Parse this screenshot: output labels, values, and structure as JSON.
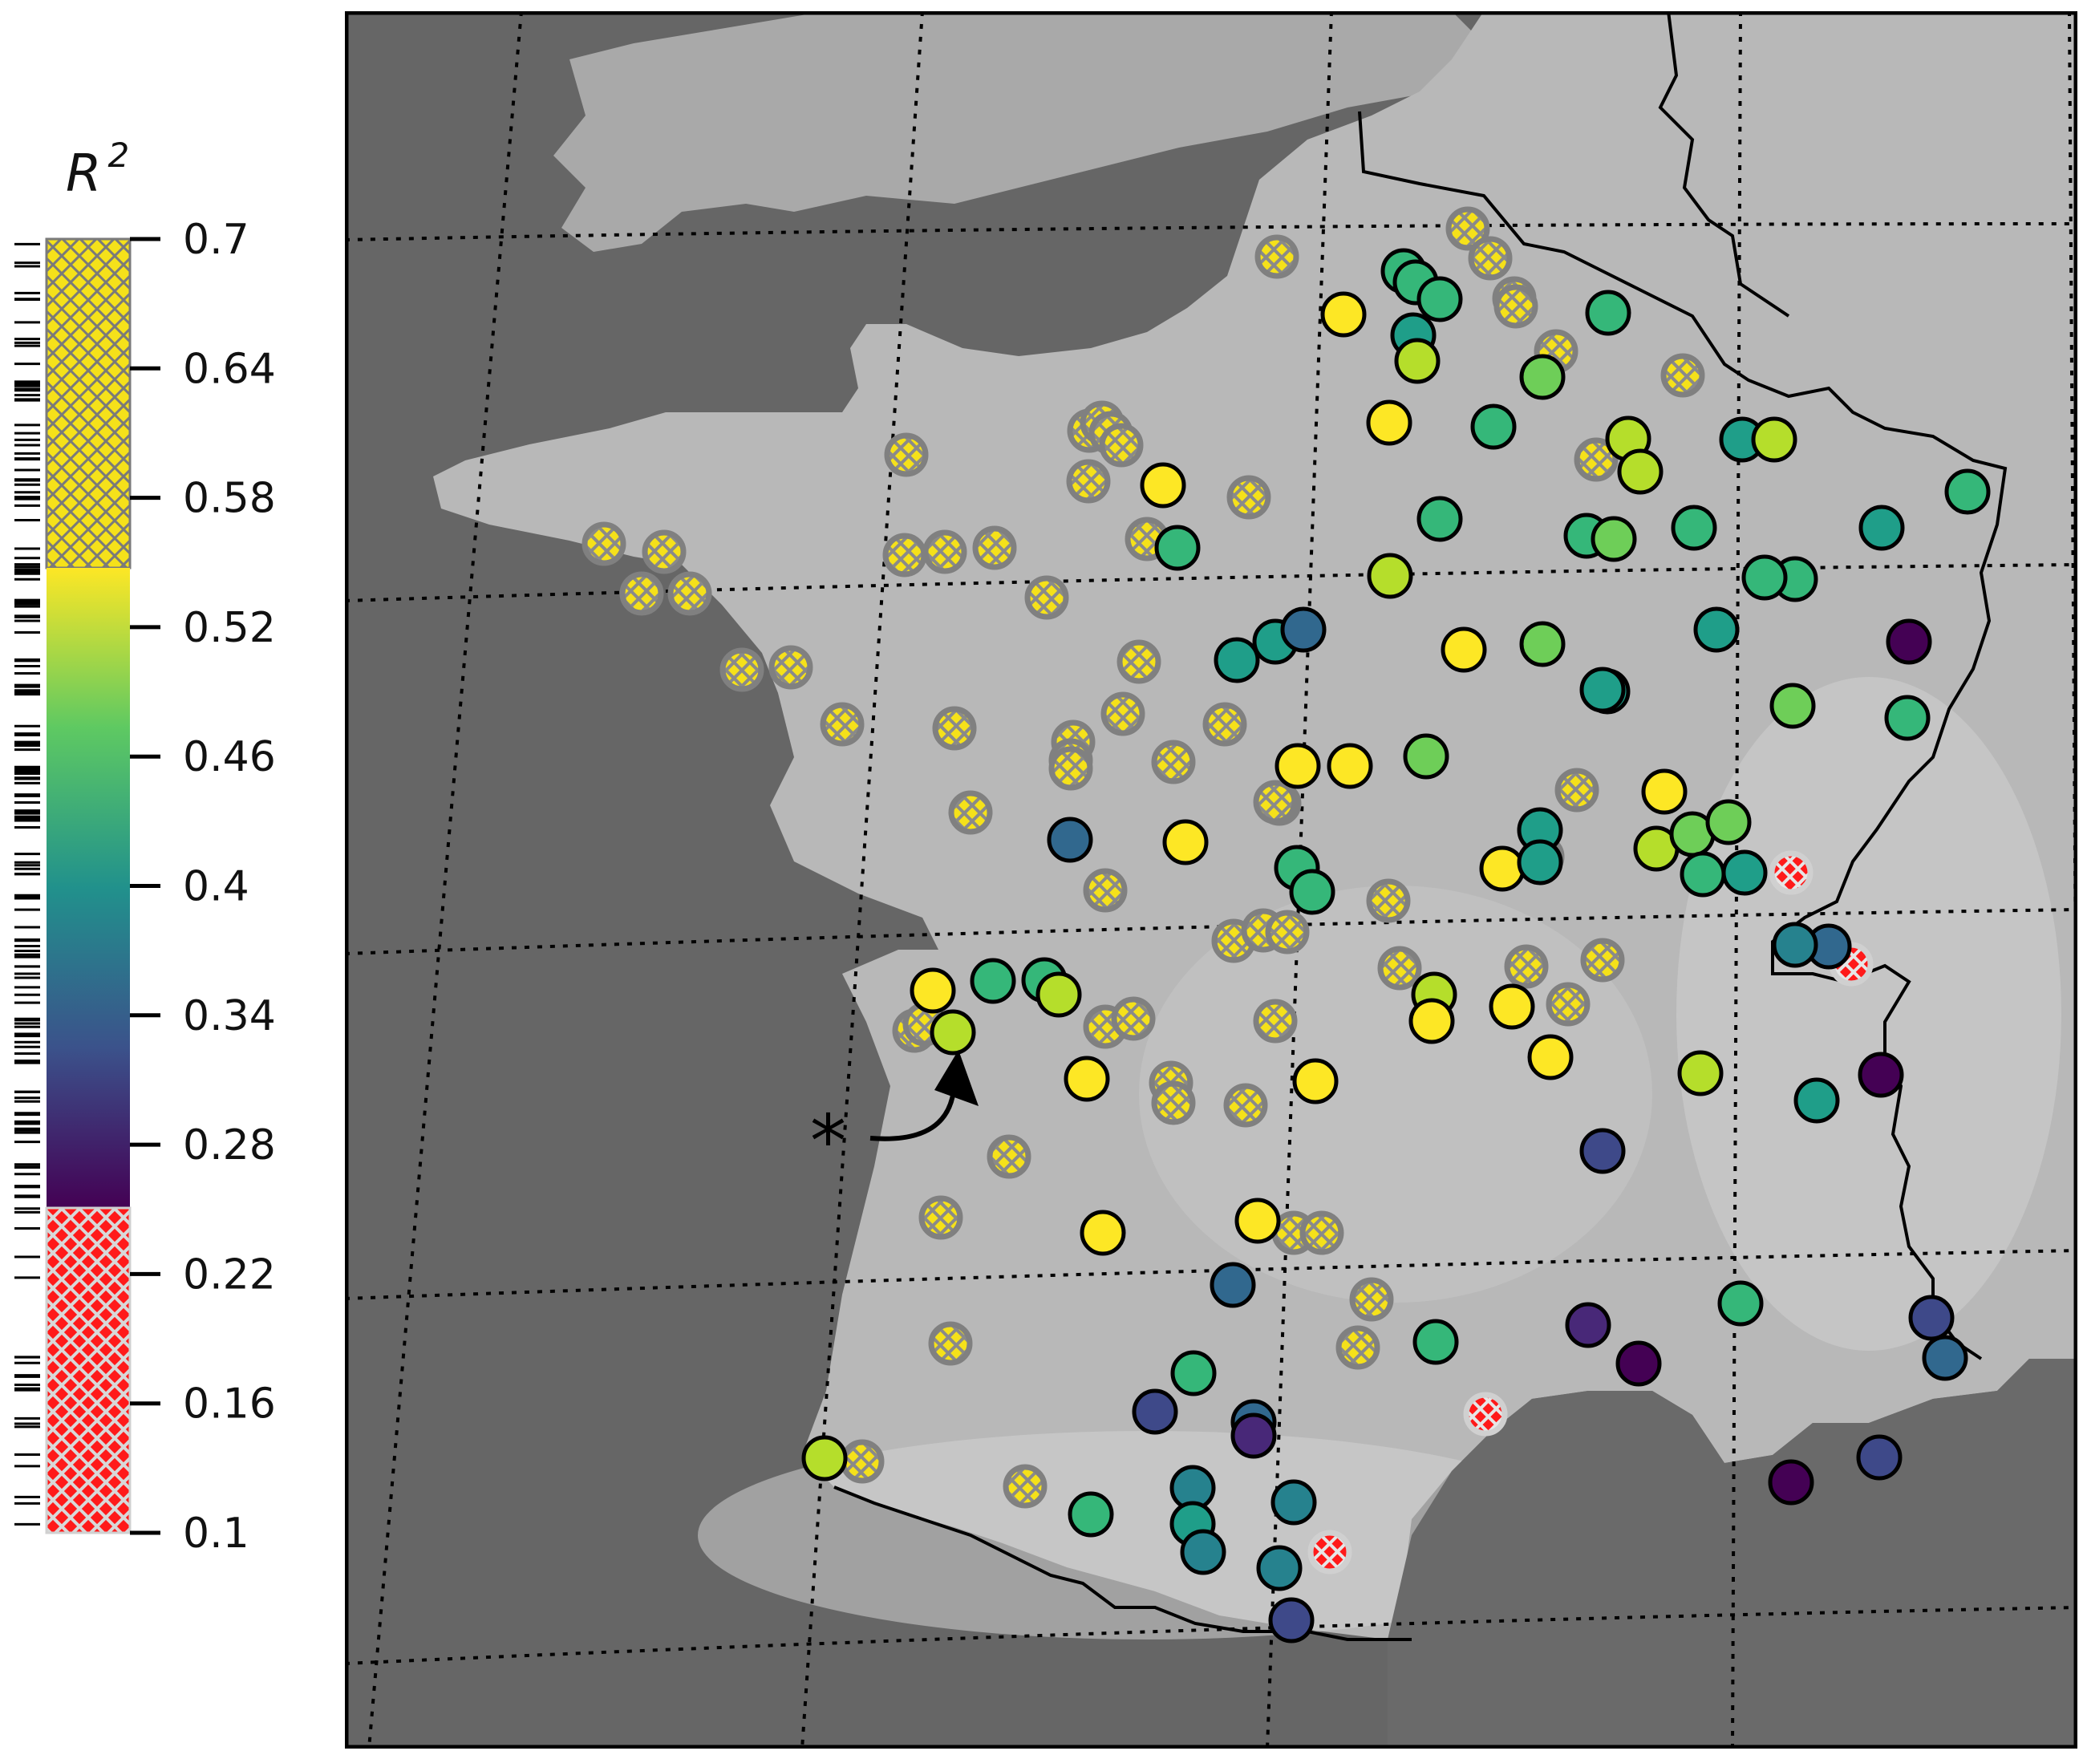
{
  "legend": {
    "title": "R",
    "title_sup": "2",
    "ticks": [
      "0.7",
      "0.64",
      "0.58",
      "0.52",
      "0.46",
      "0.4",
      "0.34",
      "0.28",
      "0.22",
      "0.16",
      "0.1"
    ],
    "range": [
      0.1,
      0.7
    ],
    "colormap": "viridis",
    "colormap_stops": [
      "#440154",
      "#3b528b",
      "#21918c",
      "#5ec962",
      "#fde725"
    ],
    "hatch_high_color": "#f5e11a",
    "hatch_low_color": "#ff0000",
    "hatch_edge": "#808080",
    "viridis_range": [
      0.25,
      0.55
    ],
    "high_hatch_above": 0.55,
    "low_hatch_below": 0.25
  },
  "map": {
    "region": "France",
    "annotation": "*",
    "colors": {
      "sea": "#666666",
      "land": "#b7b7b7",
      "border": "#000000",
      "graticule": "#000000",
      "hatched_marker_edge": "#808080",
      "low_marker_edge": "#d0d0d0"
    }
  }
}
